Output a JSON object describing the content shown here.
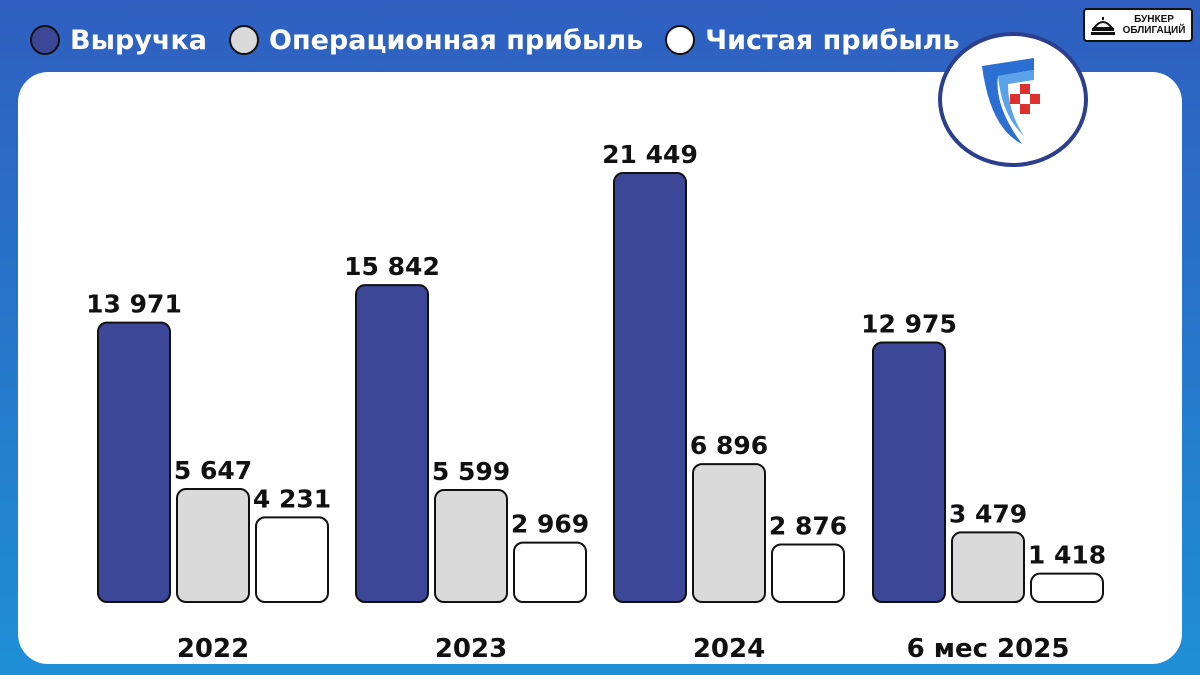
{
  "brand": {
    "line1": "БУНКЕР",
    "line2": "ОБЛИГАЦИЙ",
    "icon": "bunker-icon"
  },
  "logo": {
    "icon": "shield-logo-icon"
  },
  "colors": {
    "revenue": "#3c4798",
    "operating_profit": "#dadada",
    "net_profit": "#ffffff"
  },
  "chart_data": {
    "type": "bar",
    "categories": [
      "2022",
      "2023",
      "2024",
      "6 мес 2025"
    ],
    "series": [
      {
        "name": "Выручка",
        "values": [
          13971,
          15842,
          21449,
          12975
        ],
        "labels": [
          "13 971",
          "15 842",
          "21 449",
          "12 975"
        ]
      },
      {
        "name": "Операционная прибыль",
        "values": [
          5647,
          5599,
          6896,
          3479
        ],
        "labels": [
          "5 647",
          "5 599",
          "6 896",
          "3 479"
        ]
      },
      {
        "name": "Чистая прибыль",
        "values": [
          4231,
          2969,
          2876,
          1418
        ],
        "labels": [
          "4 231",
          "2 969",
          "2 876",
          "1 418"
        ]
      }
    ],
    "ylim": [
      0,
      22000
    ],
    "grid": false,
    "legend": "top-left"
  }
}
